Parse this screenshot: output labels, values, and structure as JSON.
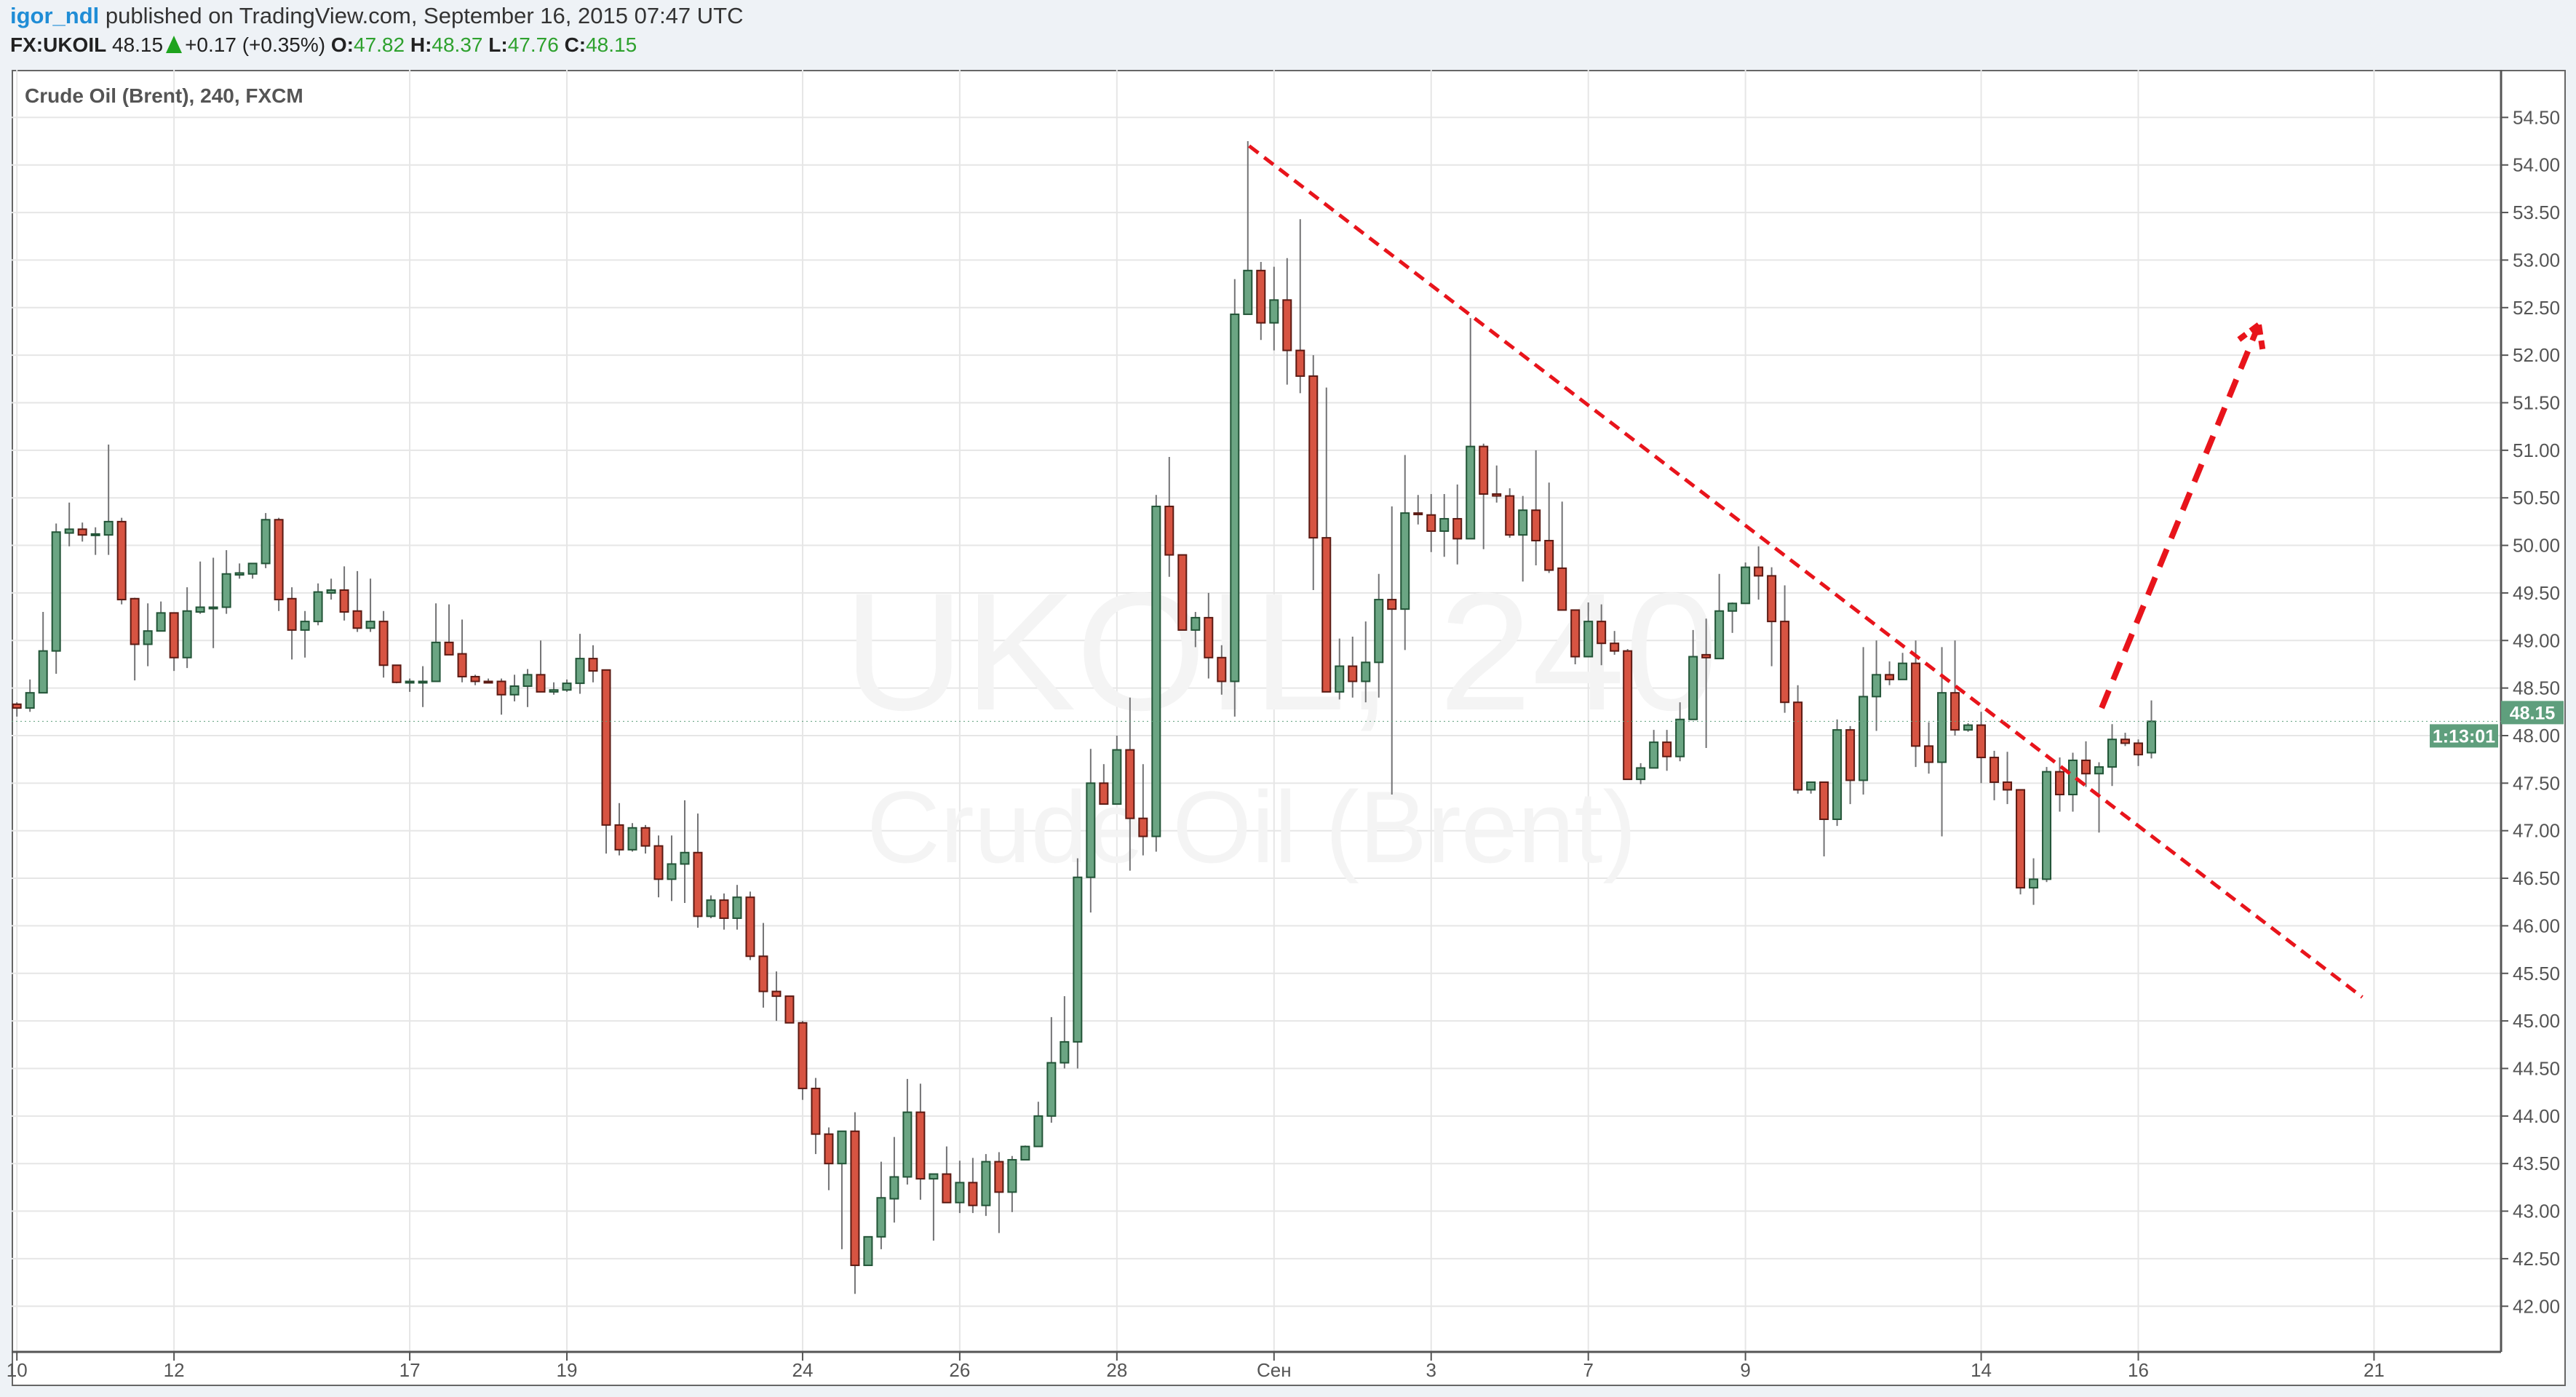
{
  "header": {
    "user": "igor_ndl",
    "published": "published on TradingView.com, September 16, 2015 07:47 UTC",
    "symbol": "FX:UKOIL",
    "last": "48.15",
    "change": "+0.17 (+0.35%)",
    "o_label": "O:",
    "o_value": "47.82",
    "h_label": "H:",
    "h_value": "48.37",
    "l_label": "L:",
    "l_value": "47.76",
    "c_label": "C:",
    "c_value": "48.15",
    "direction_icon": "triangle-up-icon"
  },
  "legend": "Crude Oil (Brent), 240, FXCM",
  "watermark": {
    "line1": "UKOIL, 240",
    "line2": "Crude Oil (Brent)"
  },
  "price_tag": {
    "value": "48.15",
    "countdown": "1:13:01",
    "color": "#5f9f7d"
  },
  "colors": {
    "up_fill": "#6ba583",
    "up_border": "#225437",
    "down_fill": "#d75442",
    "down_border": "#5b1a13",
    "wick": "#737375",
    "drawing": "#e8141b",
    "grid": "#e6e6e6"
  },
  "chart_data": {
    "type": "candlestick",
    "interval": "240",
    "ylim": [
      41.52,
      55.0
    ],
    "xlim": [
      -0.4,
      189.7
    ],
    "grid": true,
    "y_ticks": [
      "42.00",
      "42.50",
      "43.00",
      "43.50",
      "44.00",
      "44.50",
      "45.00",
      "45.50",
      "46.00",
      "46.50",
      "47.00",
      "47.50",
      "48.00",
      "48.50",
      "49.00",
      "49.50",
      "50.00",
      "50.50",
      "51.00",
      "51.50",
      "52.00",
      "52.50",
      "53.00",
      "53.50",
      "54.00",
      "54.50"
    ],
    "x_ticks": [
      {
        "label": "10",
        "bar": 0
      },
      {
        "label": "12",
        "bar": 12
      },
      {
        "label": "17",
        "bar": 30
      },
      {
        "label": "19",
        "bar": 42
      },
      {
        "label": "24",
        "bar": 60
      },
      {
        "label": "26",
        "bar": 72
      },
      {
        "label": "28",
        "bar": 84
      },
      {
        "label": "Сен",
        "bar": 96
      },
      {
        "label": "3",
        "bar": 108
      },
      {
        "label": "7",
        "bar": 120
      },
      {
        "label": "9",
        "bar": 132
      },
      {
        "label": "14",
        "bar": 150
      },
      {
        "label": "16",
        "bar": 162
      },
      {
        "label": "21",
        "bar": 180
      }
    ],
    "ohlc_fields": [
      "open",
      "high",
      "low",
      "close"
    ],
    "candles": [
      [
        48.33,
        48.35,
        48.2,
        48.29
      ],
      [
        48.29,
        48.59,
        48.25,
        48.45
      ],
      [
        48.45,
        49.3,
        48.45,
        48.89
      ],
      [
        48.89,
        50.23,
        48.65,
        50.14
      ],
      [
        50.13,
        50.45,
        49.99,
        50.17
      ],
      [
        50.17,
        50.24,
        50.04,
        50.11
      ],
      [
        50.12,
        50.19,
        49.9,
        50.12
      ],
      [
        50.11,
        51.06,
        49.9,
        50.25
      ],
      [
        50.25,
        50.29,
        49.38,
        49.43
      ],
      [
        49.44,
        49.45,
        48.58,
        48.96
      ],
      [
        48.96,
        49.39,
        48.73,
        49.1
      ],
      [
        49.1,
        49.41,
        49.1,
        49.29
      ],
      [
        49.29,
        49.29,
        48.68,
        48.82
      ],
      [
        48.82,
        49.56,
        48.71,
        49.31
      ],
      [
        49.3,
        49.83,
        49.28,
        49.35
      ],
      [
        49.35,
        49.87,
        48.92,
        49.35
      ],
      [
        49.35,
        49.95,
        49.28,
        49.7
      ],
      [
        49.69,
        49.81,
        49.65,
        49.71
      ],
      [
        49.7,
        49.81,
        49.65,
        49.81
      ],
      [
        49.81,
        50.34,
        49.76,
        50.27
      ],
      [
        50.27,
        50.29,
        49.31,
        49.43
      ],
      [
        49.44,
        49.56,
        48.8,
        49.11
      ],
      [
        49.11,
        49.31,
        48.82,
        49.2
      ],
      [
        49.2,
        49.6,
        49.16,
        49.51
      ],
      [
        49.5,
        49.65,
        49.43,
        49.53
      ],
      [
        49.53,
        49.78,
        49.21,
        49.3
      ],
      [
        49.31,
        49.73,
        49.09,
        49.13
      ],
      [
        49.13,
        49.65,
        49.09,
        49.2
      ],
      [
        49.2,
        49.31,
        48.61,
        48.74
      ],
      [
        48.74,
        48.74,
        48.55,
        48.56
      ],
      [
        48.57,
        48.6,
        48.46,
        48.57
      ],
      [
        48.57,
        48.73,
        48.3,
        48.57
      ],
      [
        48.57,
        49.39,
        48.57,
        48.98
      ],
      [
        48.98,
        49.38,
        48.85,
        48.85
      ],
      [
        48.86,
        49.22,
        48.56,
        48.62
      ],
      [
        48.62,
        48.64,
        48.53,
        48.57
      ],
      [
        48.57,
        48.6,
        48.55,
        48.56
      ],
      [
        48.57,
        48.6,
        48.22,
        48.43
      ],
      [
        48.43,
        48.64,
        48.36,
        48.52
      ],
      [
        48.52,
        48.7,
        48.3,
        48.64
      ],
      [
        48.64,
        49.0,
        48.46,
        48.46
      ],
      [
        48.46,
        48.56,
        48.43,
        48.48
      ],
      [
        48.48,
        48.59,
        48.46,
        48.55
      ],
      [
        48.55,
        49.07,
        48.44,
        48.81
      ],
      [
        48.81,
        48.95,
        48.56,
        48.68
      ],
      [
        48.69,
        48.69,
        46.76,
        47.06
      ],
      [
        47.06,
        47.29,
        46.74,
        46.8
      ],
      [
        46.8,
        47.08,
        46.78,
        47.03
      ],
      [
        47.03,
        47.06,
        46.76,
        46.84
      ],
      [
        46.84,
        46.95,
        46.3,
        46.49
      ],
      [
        46.49,
        46.95,
        46.26,
        46.65
      ],
      [
        46.65,
        47.32,
        46.24,
        46.77
      ],
      [
        46.77,
        47.18,
        45.98,
        46.1
      ],
      [
        46.1,
        46.32,
        46.08,
        46.27
      ],
      [
        46.27,
        46.34,
        45.96,
        46.08
      ],
      [
        46.08,
        46.43,
        45.96,
        46.3
      ],
      [
        46.3,
        46.36,
        45.64,
        45.68
      ],
      [
        45.68,
        46.03,
        45.14,
        45.31
      ],
      [
        45.31,
        45.52,
        45.0,
        45.26
      ],
      [
        45.26,
        45.26,
        44.98,
        44.98
      ],
      [
        44.98,
        45.0,
        44.17,
        44.29
      ],
      [
        44.29,
        44.4,
        43.6,
        43.81
      ],
      [
        43.81,
        43.88,
        43.22,
        43.5
      ],
      [
        43.5,
        43.84,
        42.6,
        43.84
      ],
      [
        43.84,
        44.04,
        42.13,
        42.43
      ],
      [
        42.43,
        42.73,
        42.43,
        42.73
      ],
      [
        42.73,
        43.52,
        42.6,
        43.14
      ],
      [
        43.13,
        43.78,
        42.88,
        43.36
      ],
      [
        43.36,
        44.39,
        43.28,
        44.04
      ],
      [
        44.04,
        44.34,
        43.12,
        43.34
      ],
      [
        43.34,
        43.39,
        42.69,
        43.39
      ],
      [
        43.39,
        43.68,
        43.09,
        43.09
      ],
      [
        43.09,
        43.53,
        42.98,
        43.3
      ],
      [
        43.3,
        43.56,
        42.98,
        43.06
      ],
      [
        43.06,
        43.6,
        42.95,
        43.52
      ],
      [
        43.52,
        43.62,
        42.77,
        43.2
      ],
      [
        43.2,
        43.58,
        42.99,
        43.54
      ],
      [
        43.54,
        43.69,
        43.54,
        43.68
      ],
      [
        43.68,
        44.15,
        43.68,
        44.0
      ],
      [
        44.0,
        45.04,
        43.93,
        44.56
      ],
      [
        44.56,
        45.26,
        44.5,
        44.78
      ],
      [
        44.78,
        46.71,
        44.5,
        46.51
      ],
      [
        46.51,
        47.86,
        46.14,
        47.5
      ],
      [
        47.5,
        47.7,
        47.28,
        47.28
      ],
      [
        47.28,
        48.0,
        47.28,
        47.85
      ],
      [
        47.85,
        48.4,
        46.58,
        47.13
      ],
      [
        47.13,
        47.7,
        46.74,
        46.94
      ],
      [
        46.94,
        50.53,
        46.78,
        50.41
      ],
      [
        50.41,
        50.93,
        49.67,
        49.9
      ],
      [
        49.9,
        49.9,
        49.11,
        49.11
      ],
      [
        49.11,
        49.3,
        48.93,
        49.24
      ],
      [
        49.24,
        49.5,
        48.6,
        48.82
      ],
      [
        48.82,
        48.95,
        48.43,
        48.57
      ],
      [
        48.57,
        52.8,
        48.2,
        52.43
      ],
      [
        52.43,
        54.25,
        52.43,
        52.89
      ],
      [
        52.89,
        52.98,
        52.16,
        52.34
      ],
      [
        52.34,
        52.93,
        52.05,
        52.58
      ],
      [
        52.58,
        53.02,
        51.69,
        52.05
      ],
      [
        52.05,
        53.43,
        51.6,
        51.78
      ],
      [
        51.78,
        52.0,
        49.53,
        50.08
      ],
      [
        50.08,
        51.66,
        48.46,
        48.46
      ],
      [
        48.46,
        49.02,
        48.38,
        48.73
      ],
      [
        48.73,
        49.04,
        48.4,
        48.57
      ],
      [
        48.57,
        49.2,
        48.35,
        48.77
      ],
      [
        48.77,
        49.7,
        48.4,
        49.43
      ],
      [
        49.43,
        50.41,
        47.38,
        49.33
      ],
      [
        49.33,
        50.95,
        48.9,
        50.34
      ],
      [
        50.34,
        50.53,
        50.22,
        50.33
      ],
      [
        50.32,
        50.54,
        49.93,
        50.15
      ],
      [
        50.15,
        50.54,
        49.88,
        50.28
      ],
      [
        50.28,
        50.64,
        49.8,
        50.07
      ],
      [
        50.07,
        52.39,
        50.07,
        51.04
      ],
      [
        51.04,
        51.07,
        49.96,
        50.54
      ],
      [
        50.54,
        50.84,
        50.45,
        50.52
      ],
      [
        50.52,
        50.6,
        50.08,
        50.11
      ],
      [
        50.11,
        50.52,
        49.62,
        50.37
      ],
      [
        50.37,
        51.0,
        49.79,
        50.05
      ],
      [
        50.05,
        50.66,
        49.71,
        49.74
      ],
      [
        49.76,
        50.46,
        49.32,
        49.32
      ],
      [
        49.32,
        49.32,
        48.75,
        48.83
      ],
      [
        48.83,
        49.4,
        48.83,
        49.2
      ],
      [
        49.2,
        49.38,
        48.74,
        48.97
      ],
      [
        48.97,
        49.1,
        48.85,
        48.89
      ],
      [
        48.89,
        48.91,
        47.54,
        47.54
      ],
      [
        47.54,
        47.71,
        47.49,
        47.66
      ],
      [
        47.66,
        48.06,
        47.66,
        47.93
      ],
      [
        47.93,
        48.06,
        47.63,
        47.78
      ],
      [
        47.78,
        48.35,
        47.73,
        48.17
      ],
      [
        48.17,
        49.11,
        48.17,
        48.83
      ],
      [
        48.85,
        49.23,
        47.87,
        48.82
      ],
      [
        48.81,
        49.7,
        48.81,
        49.31
      ],
      [
        49.31,
        49.4,
        49.08,
        49.39
      ],
      [
        49.39,
        49.82,
        49.39,
        49.77
      ],
      [
        49.77,
        49.99,
        49.43,
        49.68
      ],
      [
        49.68,
        49.77,
        48.73,
        49.2
      ],
      [
        49.2,
        49.58,
        48.24,
        48.35
      ],
      [
        48.35,
        48.53,
        47.39,
        47.43
      ],
      [
        47.43,
        47.51,
        47.39,
        47.51
      ],
      [
        47.51,
        47.51,
        46.73,
        47.12
      ],
      [
        47.12,
        48.17,
        47.05,
        48.06
      ],
      [
        48.06,
        48.1,
        47.28,
        47.53
      ],
      [
        47.53,
        48.93,
        47.38,
        48.41
      ],
      [
        48.41,
        49.0,
        48.05,
        48.64
      ],
      [
        48.64,
        48.78,
        48.53,
        48.59
      ],
      [
        48.59,
        48.87,
        48.59,
        48.76
      ],
      [
        48.76,
        49.0,
        47.67,
        47.89
      ],
      [
        47.89,
        48.14,
        47.6,
        47.72
      ],
      [
        47.72,
        48.93,
        46.94,
        48.45
      ],
      [
        48.45,
        49.0,
        48.0,
        48.06
      ],
      [
        48.06,
        48.13,
        48.04,
        48.11
      ],
      [
        48.11,
        48.25,
        47.5,
        47.77
      ],
      [
        47.77,
        47.84,
        47.32,
        47.51
      ],
      [
        47.51,
        47.83,
        47.28,
        47.43
      ],
      [
        47.43,
        47.43,
        46.33,
        46.4
      ],
      [
        46.4,
        46.71,
        46.22,
        46.49
      ],
      [
        46.49,
        47.67,
        46.46,
        47.62
      ],
      [
        47.62,
        47.77,
        47.2,
        47.38
      ],
      [
        47.38,
        47.82,
        47.2,
        47.74
      ],
      [
        47.74,
        47.94,
        47.46,
        47.6
      ],
      [
        47.6,
        47.72,
        46.98,
        47.67
      ],
      [
        47.67,
        48.12,
        47.47,
        47.96
      ],
      [
        47.96,
        48.03,
        47.89,
        47.92
      ],
      [
        47.92,
        47.96,
        47.68,
        47.8
      ],
      [
        47.82,
        48.37,
        47.76,
        48.15
      ]
    ],
    "drawings": [
      {
        "kind": "trend-line",
        "style": "dashed",
        "from": {
          "bar": 94.1,
          "price": 54.2
        },
        "to": {
          "bar": 179.1,
          "price": 45.25
        }
      },
      {
        "kind": "arrow",
        "style": "dashed",
        "from": {
          "bar": 159.2,
          "price": 48.29
        },
        "to": {
          "bar": 171.2,
          "price": 52.32
        }
      }
    ]
  }
}
